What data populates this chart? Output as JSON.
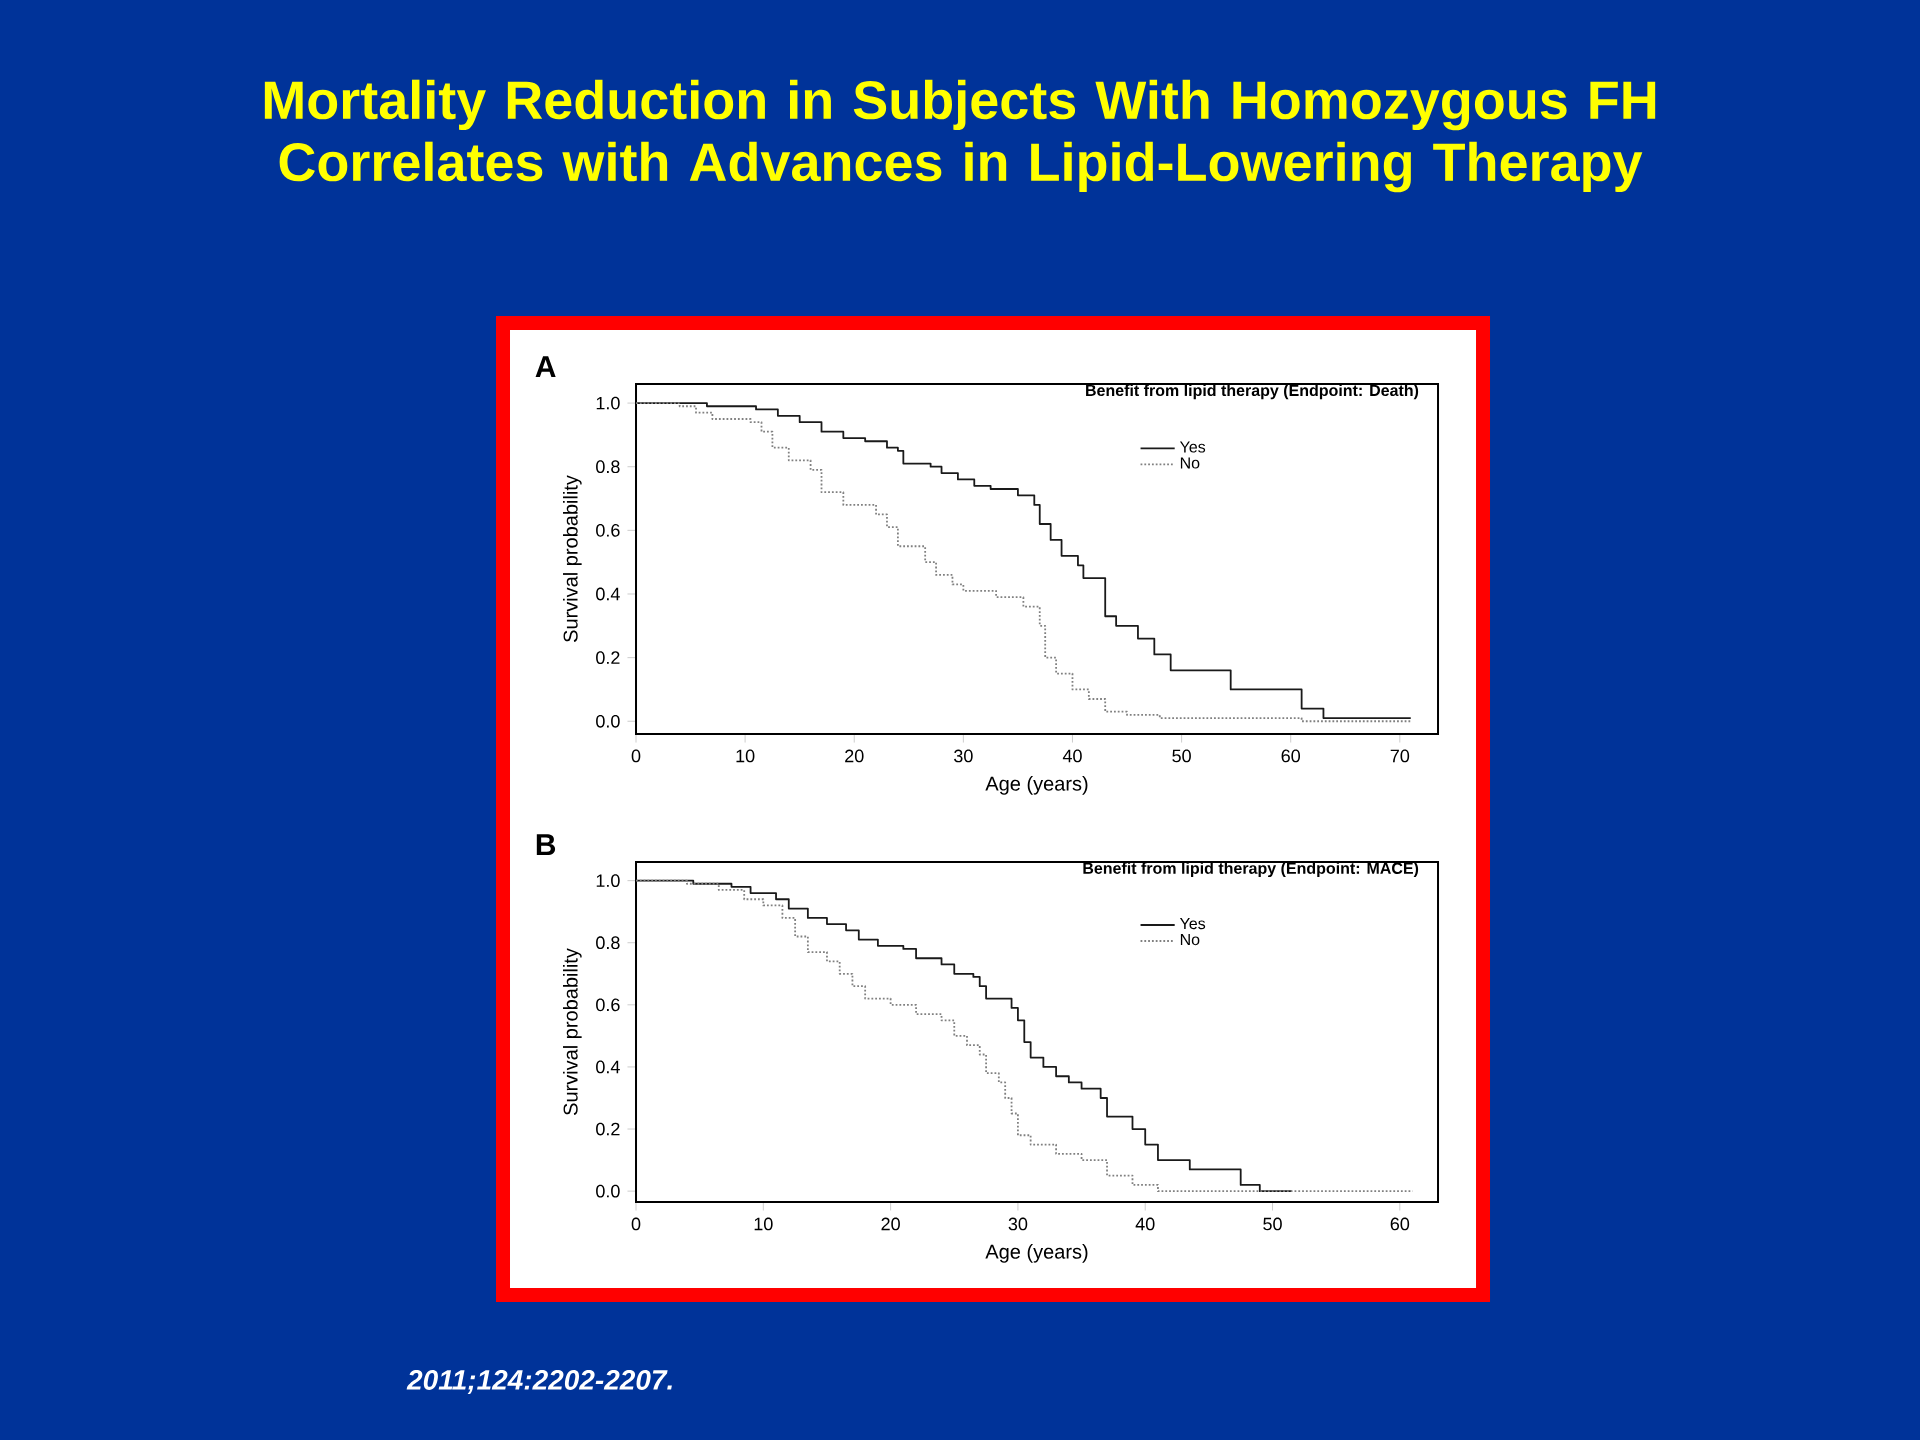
{
  "chart_data": [
    {
      "type": "other",
      "title": "Mortality Reduction in Subjects With Homozygous FH Correlates with Advances in Lipid-Lowering Therapy",
      "annotations": [
        "*2011;124:2202-2207.*"
      ]
    },
    {
      "type": "step",
      "title": "Benefit from lipid therapy (Endpoint: Death)",
      "xlabel": "Age (years)",
      "ylabel": "Survival probability",
      "annotations": [
        "A"
      ],
      "xlim": [
        0,
        73.5
      ],
      "ylim": [
        -0.04,
        1.06
      ],
      "xticks": [
        0,
        10,
        20,
        30,
        40,
        50,
        60,
        70
      ],
      "yticks": [
        {
          "value": 0,
          "label": "0.0"
        },
        {
          "value": 0.2,
          "label": "0.2"
        },
        {
          "value": 0.4,
          "label": "0.4"
        },
        {
          "value": 0.6,
          "label": "0.6"
        },
        {
          "value": 0.8,
          "label": "0.8"
        },
        {
          "value": 1,
          "label": "1.0"
        }
      ],
      "legend": "top right",
      "grid": false,
      "marker": "none",
      "series": [
        {
          "name": "Yes",
          "color": "#1a1a1a",
          "line_style": "solid",
          "x": [
            0,
            6.5,
            11,
            13,
            15,
            17,
            19,
            21,
            23,
            24,
            24.5,
            27,
            28,
            29.5,
            31,
            32.5,
            35,
            36.5,
            37,
            38,
            39,
            40.5,
            41,
            43,
            44,
            46,
            47.5,
            49,
            54.5,
            61,
            63,
            71
          ],
          "values": [
            1.0,
            0.99,
            0.98,
            0.96,
            0.94,
            0.91,
            0.89,
            0.88,
            0.86,
            0.85,
            0.81,
            0.8,
            0.78,
            0.76,
            0.74,
            0.73,
            0.71,
            0.68,
            0.62,
            0.57,
            0.52,
            0.49,
            0.45,
            0.33,
            0.3,
            0.26,
            0.21,
            0.16,
            0.1,
            0.04,
            0.01,
            0.01
          ]
        },
        {
          "name": "No",
          "color": "#808080",
          "line_style": "dotted",
          "x": [
            0,
            4,
            5.5,
            7,
            10.5,
            11.5,
            12.5,
            14,
            16,
            17,
            19,
            22,
            23,
            24,
            26.5,
            27.5,
            29,
            30,
            33,
            35.5,
            37,
            37.5,
            38.5,
            40,
            41.5,
            43,
            45,
            48,
            61,
            71
          ],
          "values": [
            1.0,
            0.99,
            0.97,
            0.95,
            0.94,
            0.91,
            0.86,
            0.82,
            0.79,
            0.72,
            0.68,
            0.65,
            0.61,
            0.55,
            0.5,
            0.46,
            0.43,
            0.41,
            0.39,
            0.36,
            0.3,
            0.2,
            0.15,
            0.1,
            0.07,
            0.03,
            0.02,
            0.01,
            0.0,
            0.0
          ]
        }
      ]
    },
    {
      "type": "step",
      "title": "Benefit from lipid therapy (Endpoint: MACE)",
      "xlabel": "Age (years)",
      "ylabel": "Survival probability",
      "annotations": [
        "B"
      ],
      "xlim": [
        0,
        63
      ],
      "ylim": [
        -0.035,
        1.06
      ],
      "xticks": [
        0,
        10,
        20,
        30,
        40,
        50,
        60
      ],
      "yticks": [
        {
          "value": 0,
          "label": "0.0"
        },
        {
          "value": 0.2,
          "label": "0.2"
        },
        {
          "value": 0.4,
          "label": "0.4"
        },
        {
          "value": 0.6,
          "label": "0.6"
        },
        {
          "value": 0.8,
          "label": "0.8"
        },
        {
          "value": 1,
          "label": "1.0"
        }
      ],
      "legend": "top right",
      "grid": false,
      "marker": "none",
      "series": [
        {
          "name": "Yes",
          "color": "#1a1a1a",
          "line_style": "solid",
          "x": [
            0,
            4.5,
            7.5,
            9,
            11,
            12,
            13.5,
            15,
            16.5,
            17.5,
            19,
            21,
            22,
            24,
            25,
            26.5,
            27,
            27.5,
            29.5,
            30,
            30.5,
            31,
            32,
            33,
            34,
            35,
            36.5,
            37,
            39,
            40,
            41,
            43.5,
            47.5,
            49,
            51.5
          ],
          "values": [
            1.0,
            0.99,
            0.98,
            0.96,
            0.94,
            0.91,
            0.88,
            0.86,
            0.84,
            0.81,
            0.79,
            0.78,
            0.75,
            0.73,
            0.7,
            0.69,
            0.66,
            0.62,
            0.59,
            0.55,
            0.48,
            0.43,
            0.4,
            0.37,
            0.35,
            0.33,
            0.3,
            0.24,
            0.2,
            0.15,
            0.1,
            0.07,
            0.02,
            0.0,
            0.0
          ]
        },
        {
          "name": "No",
          "color": "#808080",
          "line_style": "dotted",
          "x": [
            0,
            4,
            6.5,
            8.5,
            10,
            11.5,
            12.5,
            13.5,
            15,
            16,
            17,
            18,
            20,
            22,
            24,
            25,
            26,
            27,
            27.5,
            28.5,
            29,
            29.5,
            30,
            31,
            33,
            35,
            37,
            39,
            41,
            61
          ],
          "values": [
            1.0,
            0.99,
            0.97,
            0.94,
            0.92,
            0.88,
            0.82,
            0.77,
            0.74,
            0.7,
            0.66,
            0.62,
            0.6,
            0.57,
            0.55,
            0.5,
            0.47,
            0.44,
            0.38,
            0.35,
            0.3,
            0.25,
            0.18,
            0.15,
            0.12,
            0.1,
            0.05,
            0.02,
            0.0,
            0.0
          ]
        }
      ]
    }
  ]
}
